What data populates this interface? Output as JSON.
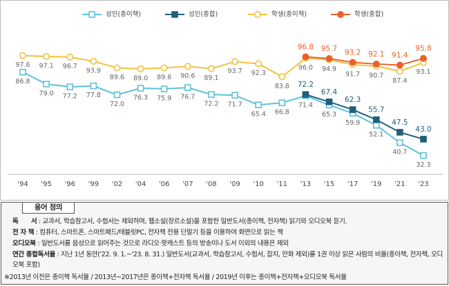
{
  "chart_data": {
    "type": "line",
    "categories": [
      "'94",
      "'95",
      "'96",
      "'99",
      "'02",
      "'04",
      "'06",
      "'07",
      "'08",
      "'09",
      "'10",
      "'11",
      "'13",
      "'15",
      "'17",
      "'19",
      "'21",
      "'23"
    ],
    "ylim": [
      20,
      120
    ],
    "series": [
      {
        "name": "성인(종이책)",
        "color": "#5cc0dc",
        "marker": "square",
        "filled": false,
        "values": [
          86.8,
          79.0,
          77.2,
          77.8,
          72.0,
          76.3,
          75.9,
          76.7,
          72.2,
          71.7,
          65.4,
          66.8,
          71.4,
          65.3,
          59.9,
          52.1,
          40.7,
          32.3
        ],
        "value_labels": [
          "86.8",
          "79.0",
          "77.2",
          "77.8",
          "72.0",
          "76.3",
          "75.9",
          "76.7",
          "72.2",
          "71.7",
          "65.4",
          "66.8",
          "71.4",
          "65.3",
          "59.9",
          "52.1",
          "40.7",
          "32.3"
        ]
      },
      {
        "name": "성인(종합)",
        "color": "#1f6079",
        "marker": "square",
        "filled": true,
        "values": [
          null,
          null,
          null,
          null,
          null,
          null,
          null,
          null,
          null,
          null,
          null,
          null,
          72.2,
          67.4,
          62.3,
          55.7,
          47.5,
          43.0
        ],
        "value_labels": [
          null,
          null,
          null,
          null,
          null,
          null,
          null,
          null,
          null,
          null,
          null,
          null,
          "72.2",
          "67.4",
          "62.3",
          "55.7",
          "47.5",
          "43.0"
        ]
      },
      {
        "name": "학생(종이책)",
        "color": "#f5c13c",
        "marker": "circle",
        "filled": false,
        "values": [
          97.6,
          97.1,
          96.7,
          93.9,
          89.6,
          89.0,
          89.6,
          90.6,
          89.1,
          93.7,
          92.3,
          83.8,
          96.0,
          94.9,
          91.7,
          90.7,
          87.4,
          93.1
        ],
        "value_labels": [
          "97.6",
          "97.1",
          "96.7",
          "93.9",
          "89.6",
          "89.0",
          "89.6",
          "90.6",
          "89.1",
          "93.7",
          "92.3",
          "83.8",
          "96.0",
          "94.9",
          "91.7",
          "90.7",
          "87.4",
          "93.1"
        ]
      },
      {
        "name": "학생(종합)",
        "color": "#e8622c",
        "marker": "circle",
        "filled": true,
        "values": [
          null,
          null,
          null,
          null,
          null,
          null,
          null,
          null,
          null,
          null,
          null,
          null,
          96.8,
          95.7,
          93.2,
          92.1,
          91.4,
          95.8
        ],
        "value_labels": [
          null,
          null,
          null,
          null,
          null,
          null,
          null,
          null,
          null,
          null,
          null,
          null,
          "96.8",
          "95.7",
          "93.2",
          "92.1",
          "91.4",
          "95.8"
        ]
      }
    ]
  },
  "definitions": {
    "title": "용어 정의",
    "items": [
      {
        "term": "독　　서",
        "text": ": 교과서, 학습참고서, 수험서는 제외하며, 웹소설(장르소설)을 포함한 일반도서(종이책, 전자책) 읽기와 오디오북 듣기."
      },
      {
        "term": "전 자 책",
        "text": ": 컴퓨터, 스마트폰, 스마트패드/태블릿PC, 전자책 전용 단말기 등을 이용하여 화면으로 읽는 책"
      },
      {
        "term": "오디오북",
        "text": ": 일반도서를 음성으로 읽어주는 것으로 라디오·팟캐스트 등의 방송이나 도서 이외의 내용은 제외"
      },
      {
        "term": "연간 종합독서율",
        "text": ": 지난 1년 동안('22. 9. 1.~'23. 8. 31.) 일반도서(교과서, 학습참고서, 수험서, 잡지, 만화 제외)를 1권 이상 읽은 사람의 비율(종이책, 전자책, 오디오북 포함)"
      }
    ],
    "note": "※2013년 이전은 종이책 독서율 / 2013년~2017년은 종이책+전자책 독서율 / 2019년 이후는 종이책+전자책+오디오북 독서율"
  }
}
